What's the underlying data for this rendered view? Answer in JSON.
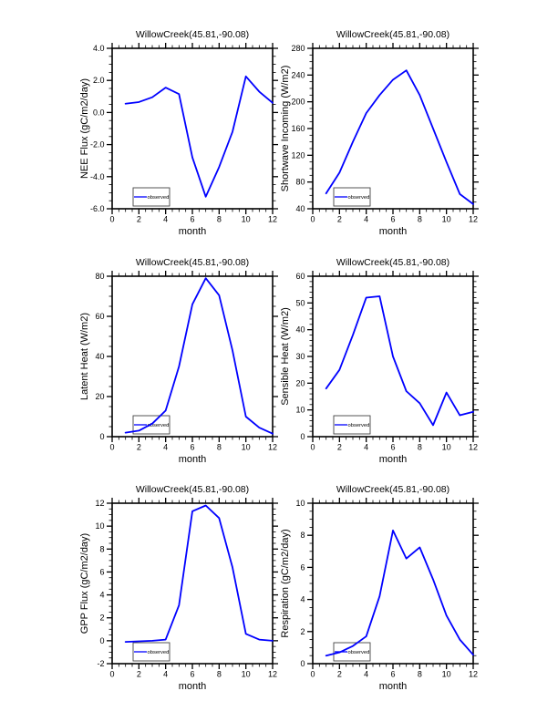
{
  "page": {
    "background": "#ffffff",
    "accent_line_color": "#0000ff"
  },
  "chart_data": [
    {
      "type": "line",
      "title": "WillowCreek(45.81,-90.08)",
      "xlabel": "month",
      "ylabel": "NEE Flux (gC/m2/day)",
      "xlim": [
        0,
        12
      ],
      "xticks": [
        0,
        2,
        4,
        6,
        8,
        10,
        12
      ],
      "xminor_step": 0.5,
      "ylim": [
        -6.0,
        4.0
      ],
      "yticks": [
        -6.0,
        -4.0,
        -2.0,
        0.0,
        2.0,
        4.0
      ],
      "yminor_step": 0.5,
      "ytick_decimals": 1,
      "grid": false,
      "x": [
        1,
        2,
        3,
        4,
        5,
        6,
        7,
        8,
        9,
        10,
        11,
        12
      ],
      "series": [
        {
          "name": "observed",
          "color": "#0000ff",
          "values": [
            0.55,
            0.65,
            0.95,
            1.55,
            1.15,
            -2.8,
            -5.25,
            -3.4,
            -1.2,
            2.25,
            1.3,
            0.6
          ]
        }
      ],
      "legend": {
        "label": "observed",
        "position": "bottom-left"
      }
    },
    {
      "type": "line",
      "title": "WillowCreek(45.81,-90.08)",
      "xlabel": "month",
      "ylabel": "Shortwave Incoming (W/m2)",
      "xlim": [
        0,
        12
      ],
      "xticks": [
        0,
        2,
        4,
        6,
        8,
        10,
        12
      ],
      "xminor_step": 0.5,
      "ylim": [
        40,
        280
      ],
      "yticks": [
        40,
        80,
        120,
        160,
        200,
        240,
        280
      ],
      "yminor_step": 10,
      "ytick_decimals": 0,
      "grid": false,
      "x": [
        1,
        2,
        3,
        4,
        5,
        6,
        7,
        8,
        9,
        10,
        11,
        12
      ],
      "series": [
        {
          "name": "observed",
          "color": "#0000ff",
          "values": [
            63,
            94,
            140,
            183,
            210,
            233,
            247,
            210,
            160,
            110,
            62,
            47
          ]
        }
      ],
      "legend": {
        "label": "observed",
        "position": "bottom-left"
      }
    },
    {
      "type": "line",
      "title": "WillowCreek(45.81,-90.08)",
      "xlabel": "month",
      "ylabel": "Latent Heat (W/m2)",
      "xlim": [
        0,
        12
      ],
      "xticks": [
        0,
        2,
        4,
        6,
        8,
        10,
        12
      ],
      "xminor_step": 0.5,
      "ylim": [
        0,
        80
      ],
      "yticks": [
        0,
        20,
        40,
        60,
        80
      ],
      "yminor_step": 5,
      "ytick_decimals": 0,
      "grid": false,
      "x": [
        1,
        2,
        3,
        4,
        5,
        6,
        7,
        8,
        9,
        10,
        11,
        12
      ],
      "series": [
        {
          "name": "observed",
          "color": "#0000ff",
          "values": [
            2,
            3,
            6.5,
            13,
            35,
            66,
            79,
            70.5,
            43,
            10,
            4.5,
            1.5
          ]
        }
      ],
      "legend": {
        "label": "observed",
        "position": "bottom-left"
      }
    },
    {
      "type": "line",
      "title": "WillowCreek(45.81,-90.08)",
      "xlabel": "month",
      "ylabel": "Sensible Heat (W/m2)",
      "xlim": [
        0,
        12
      ],
      "xticks": [
        0,
        2,
        4,
        6,
        8,
        10,
        12
      ],
      "xminor_step": 0.5,
      "ylim": [
        0,
        60
      ],
      "yticks": [
        0,
        10,
        20,
        30,
        40,
        50,
        60
      ],
      "yminor_step": 2,
      "ytick_decimals": 0,
      "grid": false,
      "x": [
        1,
        2,
        3,
        4,
        5,
        6,
        7,
        8,
        9,
        10,
        11,
        12
      ],
      "series": [
        {
          "name": "observed",
          "color": "#0000ff",
          "values": [
            18,
            25,
            38,
            52,
            52.5,
            30,
            17,
            12.5,
            4.3,
            16.5,
            8,
            9.3
          ]
        }
      ],
      "legend": {
        "label": "observed",
        "position": "bottom-left"
      }
    },
    {
      "type": "line",
      "title": "WillowCreek(45.81,-90.08)",
      "xlabel": "month",
      "ylabel": "GPP Flux (gC/m2/day)",
      "xlim": [
        0,
        12
      ],
      "xticks": [
        0,
        2,
        4,
        6,
        8,
        10,
        12
      ],
      "xminor_step": 0.5,
      "ylim": [
        -2,
        12
      ],
      "yticks": [
        -2,
        0,
        2,
        4,
        6,
        8,
        10,
        12
      ],
      "yminor_step": 0.5,
      "ytick_decimals": 0,
      "grid": false,
      "x": [
        1,
        2,
        3,
        4,
        5,
        6,
        7,
        8,
        9,
        10,
        11,
        12
      ],
      "series": [
        {
          "name": "observed",
          "color": "#0000ff",
          "values": [
            -0.1,
            -0.05,
            0,
            0.1,
            3.1,
            11.3,
            11.8,
            10.7,
            6.4,
            0.6,
            0.1,
            0
          ]
        }
      ],
      "legend": {
        "label": "observed",
        "position": "bottom-left"
      }
    },
    {
      "type": "line",
      "title": "WillowCreek(45.81,-90.08)",
      "xlabel": "month",
      "ylabel": "Respiration (gC/m2/day)",
      "xlim": [
        0,
        12
      ],
      "xticks": [
        0,
        2,
        4,
        6,
        8,
        10,
        12
      ],
      "xminor_step": 0.5,
      "ylim": [
        0,
        10
      ],
      "yticks": [
        0,
        2,
        4,
        6,
        8,
        10
      ],
      "yminor_step": 0.5,
      "ytick_decimals": 0,
      "grid": false,
      "x": [
        1,
        2,
        3,
        4,
        5,
        6,
        7,
        8,
        9,
        10,
        11,
        12
      ],
      "series": [
        {
          "name": "observed",
          "color": "#0000ff",
          "values": [
            0.5,
            0.7,
            1.1,
            1.7,
            4.2,
            8.3,
            6.55,
            7.25,
            5.25,
            3.0,
            1.5,
            0.55
          ]
        }
      ],
      "legend": {
        "label": "observed",
        "position": "bottom-left"
      }
    }
  ]
}
